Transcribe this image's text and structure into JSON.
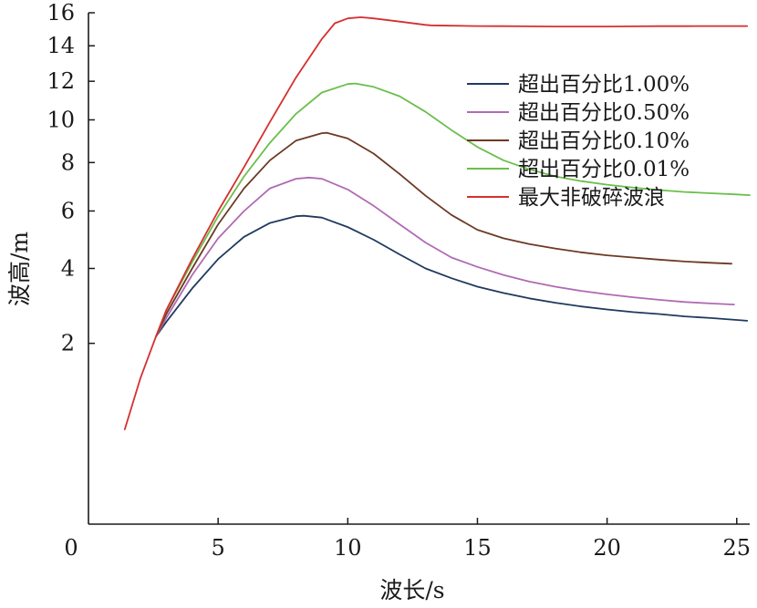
{
  "chart_data": {
    "type": "line",
    "xlabel": "波长/s",
    "ylabel": "波高/m",
    "xlim": [
      0,
      25.5
    ],
    "ylim": [
      0,
      16
    ],
    "xticks": [
      0,
      5,
      10,
      15,
      20,
      25
    ],
    "yticks": [
      2,
      4,
      6,
      8,
      10,
      12,
      14,
      16
    ],
    "x_tick_labels": [
      "0",
      "5",
      "10",
      "15",
      "20",
      "25"
    ],
    "y_tick_labels": [
      "2",
      "4",
      "6",
      "8",
      "10",
      "12",
      "14",
      "16"
    ],
    "y_scale": "sqrt",
    "legend_position": "top-right",
    "grid": false,
    "series": [
      {
        "name": "超出百分比1.00%",
        "color": "#1f3a5f",
        "x": [
          2.6,
          3,
          4,
          5,
          6,
          7,
          8,
          8.3,
          9,
          10,
          11,
          12,
          13,
          14,
          15,
          16,
          17,
          18,
          19,
          20,
          21,
          22,
          23,
          24,
          25,
          25.4
        ],
        "y": [
          2.15,
          2.5,
          3.4,
          4.3,
          5.05,
          5.55,
          5.8,
          5.82,
          5.75,
          5.4,
          4.95,
          4.45,
          4.0,
          3.7,
          3.45,
          3.27,
          3.12,
          3.0,
          2.9,
          2.82,
          2.75,
          2.7,
          2.64,
          2.6,
          2.55,
          2.53
        ]
      },
      {
        "name": "超出百分比0.50%",
        "color": "#b06ab3",
        "x": [
          2.6,
          3,
          4,
          5,
          6,
          7,
          8,
          8.5,
          9,
          10,
          11,
          12,
          13,
          14,
          15,
          16,
          17,
          18,
          19,
          20,
          21,
          22,
          23,
          24,
          24.9
        ],
        "y": [
          2.15,
          2.6,
          3.8,
          5.0,
          6.0,
          6.9,
          7.3,
          7.35,
          7.3,
          6.85,
          6.2,
          5.5,
          4.85,
          4.35,
          4.05,
          3.8,
          3.6,
          3.45,
          3.33,
          3.23,
          3.15,
          3.08,
          3.02,
          2.98,
          2.95
        ]
      },
      {
        "name": "超出百分比0.10%",
        "color": "#6b3a24",
        "x": [
          2.6,
          3,
          4,
          5,
          6,
          7,
          8,
          9,
          9.2,
          10,
          11,
          12,
          13,
          14,
          15,
          16,
          17,
          18,
          19,
          20,
          21,
          22,
          23,
          24,
          24.8
        ],
        "y": [
          2.15,
          2.7,
          4.0,
          5.5,
          6.9,
          8.1,
          9.0,
          9.35,
          9.37,
          9.1,
          8.4,
          7.5,
          6.6,
          5.85,
          5.3,
          5.0,
          4.8,
          4.65,
          4.52,
          4.42,
          4.35,
          4.28,
          4.22,
          4.18,
          4.15
        ]
      },
      {
        "name": "超出百分比0.01%",
        "color": "#6abf4b",
        "x": [
          2.6,
          3,
          4,
          5,
          6,
          7,
          8,
          9,
          10,
          10.3,
          11,
          12,
          13,
          14,
          15,
          16,
          17,
          18,
          19,
          20,
          21,
          22,
          23,
          24,
          25,
          25.5
        ],
        "y": [
          2.15,
          2.8,
          4.2,
          5.8,
          7.4,
          8.9,
          10.3,
          11.4,
          11.85,
          11.88,
          11.7,
          11.2,
          10.4,
          9.5,
          8.7,
          8.1,
          7.7,
          7.4,
          7.2,
          7.05,
          6.93,
          6.83,
          6.75,
          6.7,
          6.65,
          6.62
        ]
      },
      {
        "name": "最大非破碎波浪",
        "color": "#d62f2f",
        "x": [
          1.4,
          2,
          2.6,
          3,
          4,
          5,
          6,
          7,
          8,
          9,
          9.5,
          10,
          10.5,
          11,
          12,
          13,
          13.2,
          14,
          15,
          16,
          17,
          18,
          19,
          20,
          21,
          22,
          23,
          24,
          25,
          25.4
        ],
        "y": [
          0.55,
          1.3,
          2.15,
          2.8,
          4.3,
          6.0,
          7.8,
          9.9,
          12.2,
          14.4,
          15.35,
          15.65,
          15.72,
          15.65,
          15.45,
          15.25,
          15.22,
          15.2,
          15.18,
          15.17,
          15.16,
          15.15,
          15.15,
          15.15,
          15.16,
          15.17,
          15.17,
          15.18,
          15.18,
          15.18
        ]
      }
    ]
  }
}
